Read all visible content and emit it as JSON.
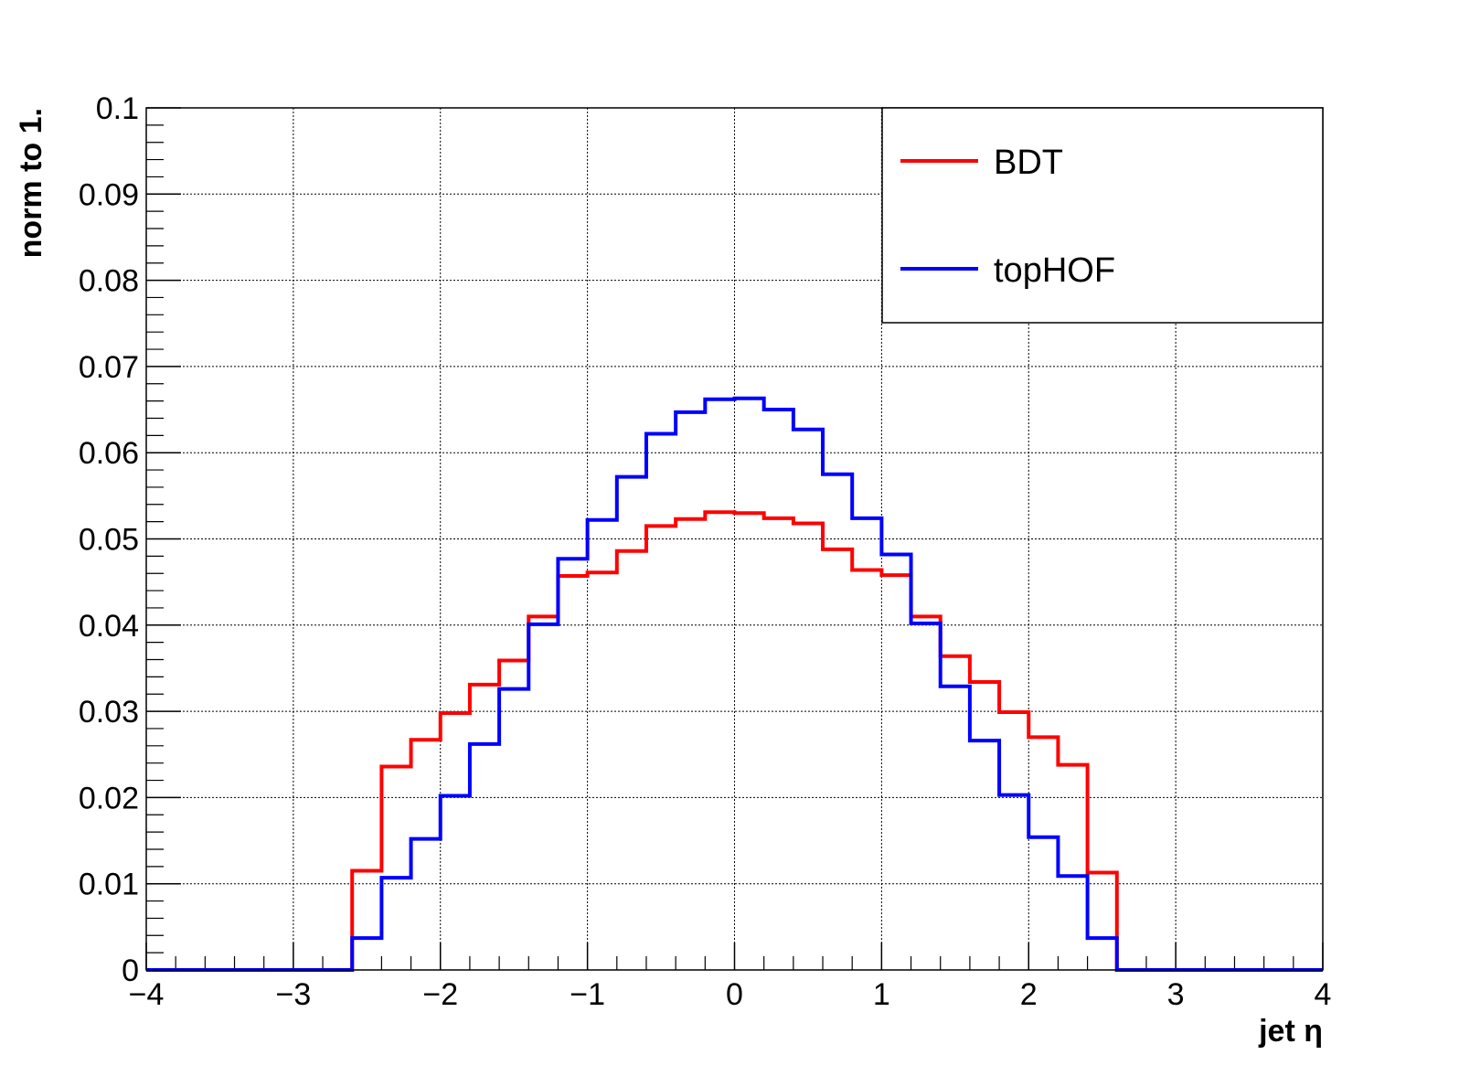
{
  "chart_data": {
    "type": "histogram",
    "title": "",
    "xlabel": "jet η",
    "ylabel": "norm to 1.",
    "xlim": [
      -4,
      4
    ],
    "ylim": [
      0,
      0.1
    ],
    "grid": true,
    "legend_position": "top-right",
    "bin_edges": [
      -4.0,
      -3.8,
      -3.6,
      -3.4,
      -3.2,
      -3.0,
      -2.8,
      -2.6,
      -2.4,
      -2.2,
      -2.0,
      -1.8,
      -1.6,
      -1.4,
      -1.2,
      -1.0,
      -0.8,
      -0.6,
      -0.4,
      -0.2,
      0.0,
      0.2,
      0.4,
      0.6,
      0.8,
      1.0,
      1.2,
      1.4,
      1.6,
      1.8,
      2.0,
      2.2,
      2.4,
      2.6,
      2.8,
      3.0,
      3.2,
      3.4,
      3.6,
      3.8,
      4.0
    ],
    "x_ticks": [
      "−4",
      "−3",
      "−2",
      "−1",
      "0",
      "1",
      "2",
      "3",
      "4"
    ],
    "y_ticks": [
      "0",
      "0.01",
      "0.02",
      "0.03",
      "0.04",
      "0.05",
      "0.06",
      "0.07",
      "0.08",
      "0.09",
      "0.1"
    ],
    "series": [
      {
        "name": "BDT",
        "color": "#ff0000",
        "values": [
          0,
          0,
          0,
          0,
          0,
          0,
          0,
          0.0115,
          0.0236,
          0.0267,
          0.0298,
          0.0331,
          0.0359,
          0.041,
          0.0457,
          0.0461,
          0.0486,
          0.0515,
          0.0523,
          0.0531,
          0.053,
          0.0524,
          0.0518,
          0.0488,
          0.0464,
          0.0458,
          0.041,
          0.0364,
          0.0334,
          0.0299,
          0.027,
          0.0238,
          0.0113,
          0,
          0,
          0,
          0,
          0,
          0,
          0
        ]
      },
      {
        "name": "topHOF",
        "color": "#0000ff",
        "values": [
          0,
          0,
          0,
          0,
          0,
          0,
          0,
          0.0037,
          0.0107,
          0.0152,
          0.0202,
          0.0262,
          0.0326,
          0.0401,
          0.0477,
          0.0522,
          0.0572,
          0.0622,
          0.0647,
          0.0662,
          0.0663,
          0.065,
          0.0627,
          0.0575,
          0.0524,
          0.0482,
          0.0402,
          0.0329,
          0.0266,
          0.0203,
          0.0154,
          0.0109,
          0.0037,
          0,
          0,
          0,
          0,
          0,
          0,
          0
        ]
      }
    ]
  }
}
